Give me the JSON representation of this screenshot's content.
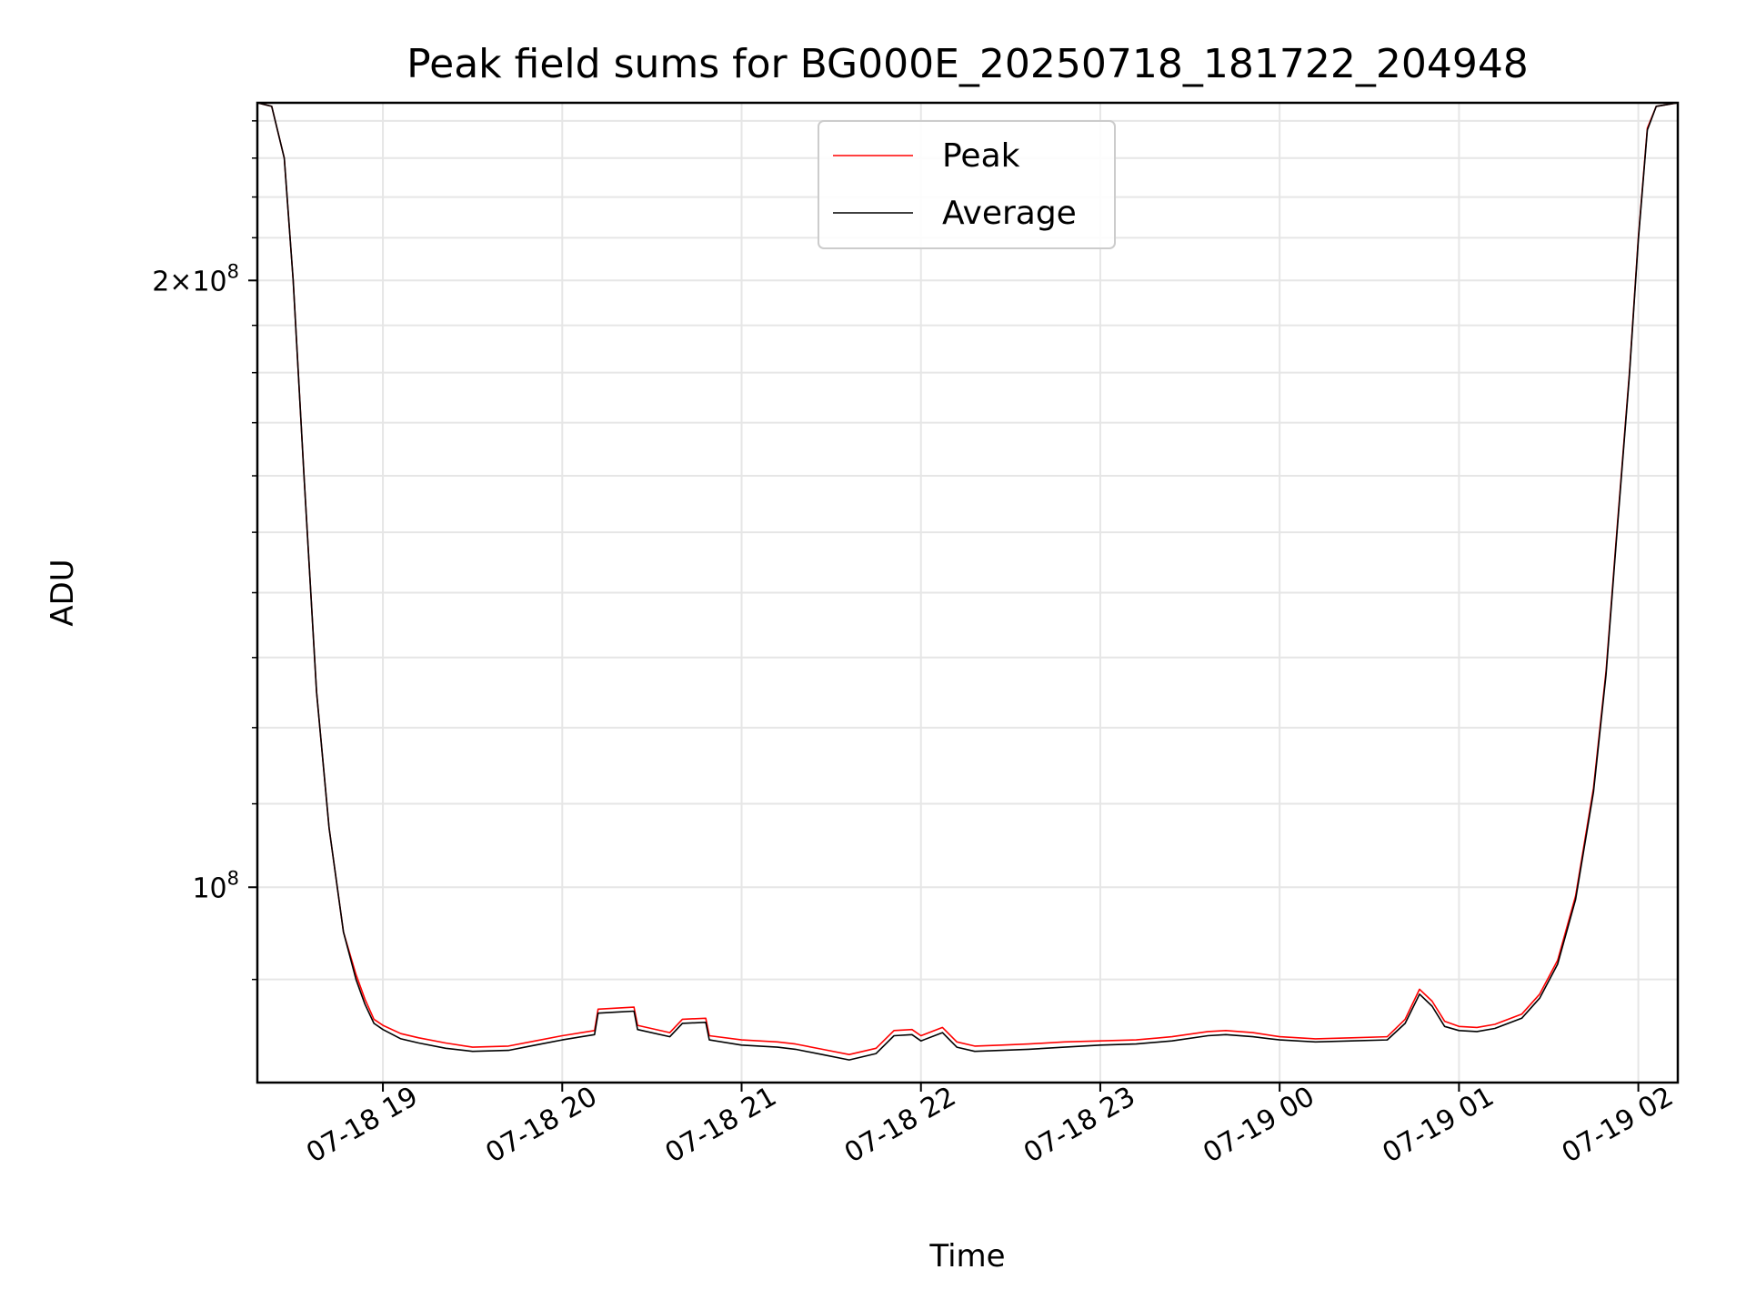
{
  "chart_data": {
    "type": "line",
    "title": "Peak field sums for BG000E_20250718_181722_204948",
    "xlabel": "Time",
    "ylabel": "ADU",
    "x_tick_labels": [
      "07-18 19",
      "07-18 20",
      "07-18 21",
      "07-18 22",
      "07-18 23",
      "07-19 00",
      "07-19 01",
      "07-19 02"
    ],
    "y_tick_major": [
      {
        "value": 100000000,
        "base": "10",
        "exp": "8",
        "mult": ""
      },
      {
        "value": 200000000,
        "base": "10",
        "exp": "8",
        "mult": "2×"
      }
    ],
    "y_scale": "log",
    "ylim": [
      80000000,
      245000000
    ],
    "x_range_hours": [
      18.3,
      26.22
    ],
    "grid": true,
    "legend_position": "top-center",
    "series": [
      {
        "name": "Peak",
        "color": "#ff0000",
        "points": [
          [
            18.3,
            245000000
          ],
          [
            18.38,
            244000000
          ],
          [
            18.45,
            230000000
          ],
          [
            18.5,
            200000000
          ],
          [
            18.56,
            160000000
          ],
          [
            18.63,
            125000000
          ],
          [
            18.7,
            107000000
          ],
          [
            18.78,
            95000000
          ],
          [
            18.85,
            90500000
          ],
          [
            18.9,
            88000000
          ],
          [
            18.95,
            86000000
          ],
          [
            19.0,
            85400000
          ],
          [
            19.1,
            84600000
          ],
          [
            19.2,
            84200000
          ],
          [
            19.35,
            83700000
          ],
          [
            19.5,
            83300000
          ],
          [
            19.7,
            83400000
          ],
          [
            19.85,
            83900000
          ],
          [
            20.0,
            84400000
          ],
          [
            20.18,
            84900000
          ],
          [
            20.2,
            87000000
          ],
          [
            20.3,
            87100000
          ],
          [
            20.4,
            87200000
          ],
          [
            20.42,
            85400000
          ],
          [
            20.6,
            84700000
          ],
          [
            20.67,
            86000000
          ],
          [
            20.8,
            86100000
          ],
          [
            20.82,
            84400000
          ],
          [
            21.0,
            84000000
          ],
          [
            21.2,
            83800000
          ],
          [
            21.3,
            83600000
          ],
          [
            21.45,
            83100000
          ],
          [
            21.6,
            82600000
          ],
          [
            21.75,
            83200000
          ],
          [
            21.85,
            84900000
          ],
          [
            21.95,
            85000000
          ],
          [
            22.0,
            84400000
          ],
          [
            22.12,
            85200000
          ],
          [
            22.2,
            83800000
          ],
          [
            22.3,
            83400000
          ],
          [
            22.45,
            83500000
          ],
          [
            22.6,
            83600000
          ],
          [
            22.8,
            83800000
          ],
          [
            23.0,
            83900000
          ],
          [
            23.2,
            84000000
          ],
          [
            23.4,
            84300000
          ],
          [
            23.6,
            84800000
          ],
          [
            23.7,
            84900000
          ],
          [
            23.85,
            84700000
          ],
          [
            24.0,
            84300000
          ],
          [
            24.2,
            84100000
          ],
          [
            24.4,
            84200000
          ],
          [
            24.6,
            84300000
          ],
          [
            24.7,
            86000000
          ],
          [
            24.78,
            89000000
          ],
          [
            24.85,
            87800000
          ],
          [
            24.92,
            85800000
          ],
          [
            25.0,
            85300000
          ],
          [
            25.1,
            85200000
          ],
          [
            25.2,
            85500000
          ],
          [
            25.35,
            86500000
          ],
          [
            25.45,
            88500000
          ],
          [
            25.55,
            92000000
          ],
          [
            25.65,
            99000000
          ],
          [
            25.75,
            112000000
          ],
          [
            25.82,
            128000000
          ],
          [
            25.88,
            150000000
          ],
          [
            25.95,
            180000000
          ],
          [
            26.0,
            210000000
          ],
          [
            26.05,
            238000000
          ],
          [
            26.1,
            244000000
          ],
          [
            26.22,
            245000000
          ]
        ]
      },
      {
        "name": "Average",
        "color": "#000000",
        "points": [
          [
            18.3,
            245000000
          ],
          [
            18.38,
            244000000
          ],
          [
            18.45,
            230000000
          ],
          [
            18.5,
            200000000
          ],
          [
            18.56,
            160000000
          ],
          [
            18.63,
            125000000
          ],
          [
            18.7,
            107000000
          ],
          [
            18.78,
            95000000
          ],
          [
            18.85,
            90000000
          ],
          [
            18.9,
            87500000
          ],
          [
            18.95,
            85600000
          ],
          [
            19.0,
            85000000
          ],
          [
            19.1,
            84100000
          ],
          [
            19.2,
            83700000
          ],
          [
            19.35,
            83200000
          ],
          [
            19.5,
            82900000
          ],
          [
            19.7,
            83000000
          ],
          [
            19.85,
            83500000
          ],
          [
            20.0,
            84000000
          ],
          [
            20.18,
            84500000
          ],
          [
            20.2,
            86600000
          ],
          [
            20.3,
            86700000
          ],
          [
            20.4,
            86800000
          ],
          [
            20.42,
            85000000
          ],
          [
            20.6,
            84300000
          ],
          [
            20.67,
            85600000
          ],
          [
            20.8,
            85700000
          ],
          [
            20.82,
            84000000
          ],
          [
            21.0,
            83500000
          ],
          [
            21.2,
            83300000
          ],
          [
            21.3,
            83100000
          ],
          [
            21.45,
            82600000
          ],
          [
            21.6,
            82100000
          ],
          [
            21.75,
            82700000
          ],
          [
            21.85,
            84400000
          ],
          [
            21.95,
            84500000
          ],
          [
            22.0,
            83900000
          ],
          [
            22.12,
            84700000
          ],
          [
            22.2,
            83300000
          ],
          [
            22.3,
            82900000
          ],
          [
            22.45,
            83000000
          ],
          [
            22.6,
            83100000
          ],
          [
            22.8,
            83300000
          ],
          [
            23.0,
            83500000
          ],
          [
            23.2,
            83600000
          ],
          [
            23.4,
            83900000
          ],
          [
            23.6,
            84400000
          ],
          [
            23.7,
            84500000
          ],
          [
            23.85,
            84300000
          ],
          [
            24.0,
            84000000
          ],
          [
            24.2,
            83800000
          ],
          [
            24.4,
            83900000
          ],
          [
            24.6,
            84000000
          ],
          [
            24.7,
            85600000
          ],
          [
            24.78,
            88500000
          ],
          [
            24.85,
            87300000
          ],
          [
            24.92,
            85300000
          ],
          [
            25.0,
            84900000
          ],
          [
            25.1,
            84800000
          ],
          [
            25.2,
            85100000
          ],
          [
            25.35,
            86100000
          ],
          [
            25.45,
            88100000
          ],
          [
            25.55,
            91600000
          ],
          [
            25.65,
            98600000
          ],
          [
            25.75,
            111500000
          ],
          [
            25.82,
            127500000
          ],
          [
            25.88,
            149500000
          ],
          [
            25.95,
            179500000
          ],
          [
            26.0,
            209500000
          ],
          [
            26.05,
            237500000
          ],
          [
            26.1,
            244000000
          ],
          [
            26.22,
            245000000
          ]
        ]
      }
    ]
  }
}
